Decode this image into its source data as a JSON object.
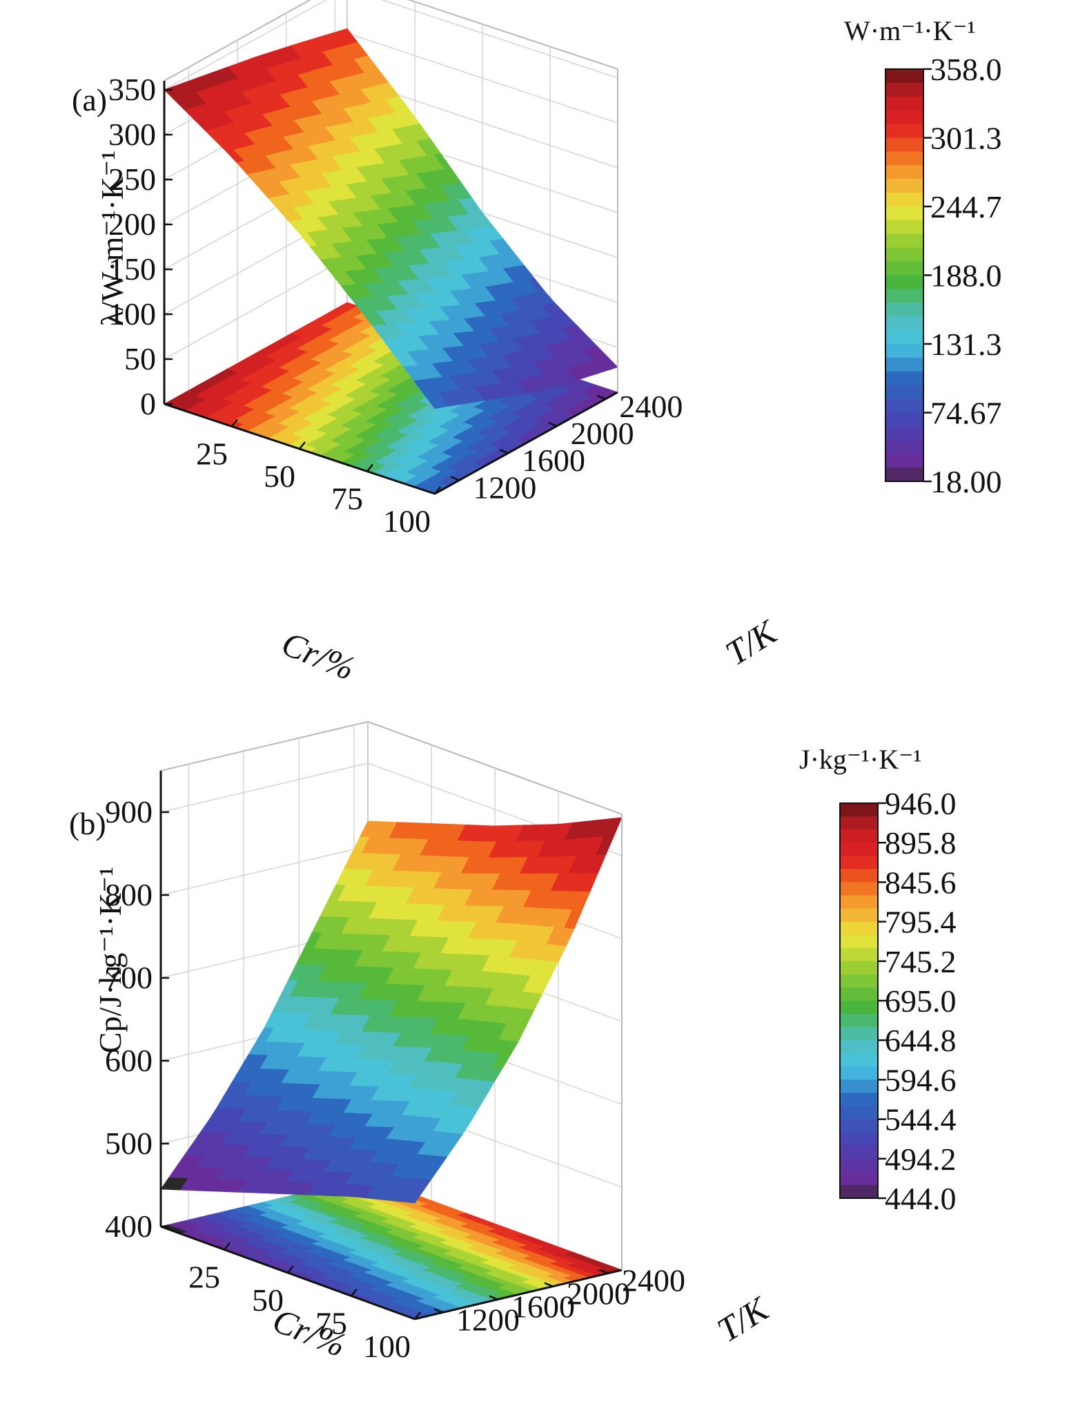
{
  "chart_data": [
    {
      "panel_label": "(a)",
      "type": "surface3d",
      "z_label": "λ/W·m⁻¹·K⁻¹",
      "x_label": "Cr/%",
      "y_label": "T/K",
      "x_ticks": [
        "25",
        "50",
        "75",
        "100"
      ],
      "y_ticks": [
        "1200",
        "1600",
        "2000",
        "2400"
      ],
      "z_ticks": [
        "0",
        "50",
        "100",
        "150",
        "200",
        "250",
        "300",
        "350"
      ],
      "xlim": [
        0,
        100
      ],
      "ylim": [
        1000,
        2500
      ],
      "zlim": [
        0,
        360
      ],
      "colorbar": {
        "unit": "W·m⁻¹·K⁻¹",
        "ticks": [
          "358.0",
          "301.3",
          "244.7",
          "188.0",
          "131.3",
          "74.67",
          "18.00"
        ],
        "min": 18.0,
        "max": 358.0
      },
      "surface": {
        "cr": [
          0,
          25,
          50,
          75,
          100
        ],
        "t": [
          1000,
          1375,
          1750,
          2125,
          2500
        ],
        "z": [
          [
            350,
            340,
            330,
            318,
            305
          ],
          [
            300,
            285,
            268,
            250,
            232
          ],
          [
            240,
            218,
            195,
            172,
            150
          ],
          [
            170,
            145,
            120,
            98,
            80
          ],
          [
            95,
            75,
            55,
            40,
            28
          ]
        ]
      }
    },
    {
      "panel_label": "(b)",
      "type": "surface3d",
      "z_label": "Cp/J·kg⁻¹·K⁻¹",
      "x_label": "Cr/%",
      "y_label": "T/K",
      "x_ticks": [
        "25",
        "50",
        "75",
        "100"
      ],
      "y_ticks": [
        "1200",
        "1600",
        "2000",
        "2400"
      ],
      "z_ticks": [
        "400",
        "500",
        "600",
        "700",
        "800",
        "900"
      ],
      "xlim": [
        0,
        100
      ],
      "ylim": [
        1000,
        2500
      ],
      "zlim": [
        400,
        950
      ],
      "colorbar": {
        "unit": "J·kg⁻¹·K⁻¹",
        "ticks": [
          "946.0",
          "895.8",
          "845.6",
          "795.4",
          "745.2",
          "695.0",
          "644.8",
          "594.6",
          "544.4",
          "494.2",
          "444.0"
        ],
        "min": 444.0,
        "max": 946.0
      },
      "surface": {
        "cr": [
          0,
          25,
          50,
          75,
          100
        ],
        "t": [
          1000,
          1375,
          1750,
          2125,
          2500
        ],
        "z": [
          [
            445,
            520,
            610,
            720,
            830
          ],
          [
            470,
            545,
            635,
            745,
            855
          ],
          [
            495,
            570,
            660,
            770,
            880
          ],
          [
            520,
            595,
            685,
            795,
            910
          ],
          [
            540,
            615,
            705,
            815,
            946
          ]
        ]
      }
    }
  ]
}
